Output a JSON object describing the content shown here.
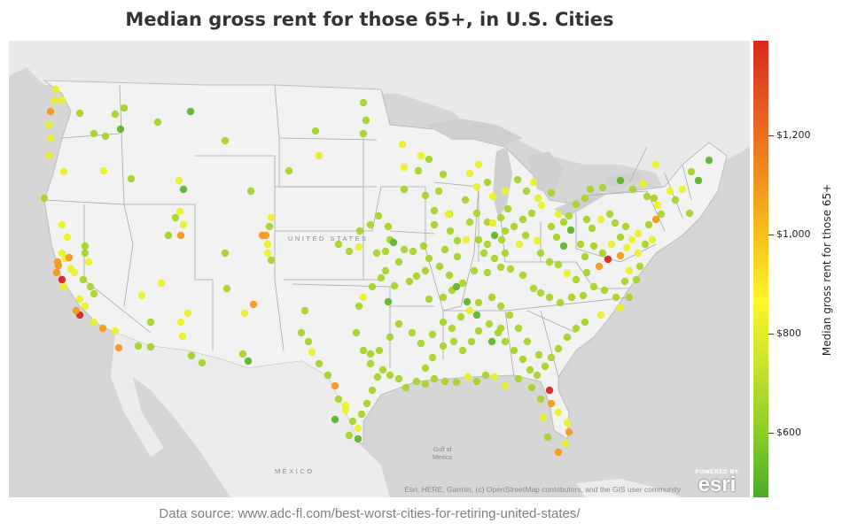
{
  "title": "Median gross rent for those 65+, in U.S. Cities",
  "source": "Data source: www.adc-fl.com/best-worst-cities-for-retiring-united-states/",
  "map": {
    "country_label": "UNITED STATES",
    "mexico_label": "MÉXICO",
    "gulf_label_1": "Gulf of",
    "gulf_label_2": "Mexico",
    "attribution": "Esri, HERE, Garmin, (c) OpenStreetMap contributors, and the GIS user community",
    "esri_powered": "POWERED BY",
    "esri_name": "esri",
    "land_color": "#efefef",
    "water_color": "#d4d4d4",
    "border_color": "#a8a8a8"
  },
  "legend": {
    "title": "Median gross rent for those 65+",
    "ticks": [
      "$1,200",
      "$1,000",
      "$800",
      "$600"
    ],
    "tick_values": [
      1200,
      1000,
      800,
      600
    ],
    "min_value": 470,
    "max_value": 1390,
    "colors": [
      "#4aab2a",
      "#8ccd2a",
      "#c7e22b",
      "#fff52a",
      "#f7c21a",
      "#ef8a1f",
      "#e45a22",
      "#d8281f"
    ]
  }
}
